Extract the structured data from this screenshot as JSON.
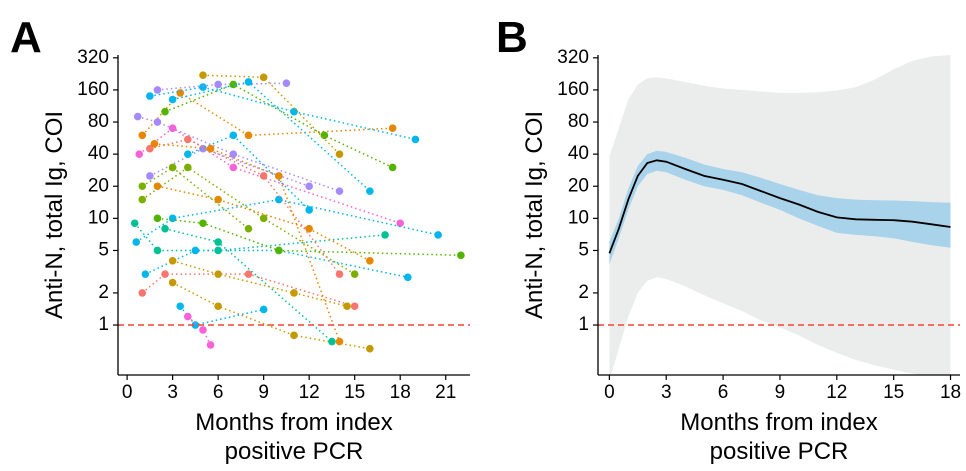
{
  "chart_data": [
    {
      "type": "spaghetti",
      "panel_label": "A",
      "ylabel": "Anti-N, total Ig, COI",
      "xlabel": [
        "Months from index",
        "positive PCR"
      ],
      "log_y": true,
      "xlim": [
        -0.6,
        22.6
      ],
      "ylim": [
        0.34,
        340
      ],
      "xticks": [
        0,
        3,
        6,
        9,
        12,
        15,
        18,
        21
      ],
      "yticks": [
        1,
        2,
        5,
        10,
        20,
        40,
        80,
        160,
        320
      ],
      "hline": 1,
      "hline_color": "#f44336",
      "series": [
        {
          "color": "#E58700",
          "x": [
            1,
            3.5,
            8,
            17.5
          ],
          "values": [
            60,
            150,
            60,
            70
          ]
        },
        {
          "color": "#00B6EB",
          "x": [
            1.5,
            5,
            11,
            19
          ],
          "values": [
            140,
            170,
            100,
            55
          ]
        },
        {
          "color": "#A58AFF",
          "x": [
            2,
            6,
            10.5
          ],
          "values": [
            160,
            180,
            185
          ]
        },
        {
          "color": "#53B400",
          "x": [
            2.5,
            7,
            13,
            17.5
          ],
          "values": [
            100,
            180,
            60,
            30
          ]
        },
        {
          "color": "#00B6EB",
          "x": [
            3,
            8,
            16
          ],
          "values": [
            130,
            190,
            18
          ]
        },
        {
          "color": "#FB61D7",
          "x": [
            0.8,
            3,
            7,
            18
          ],
          "values": [
            40,
            70,
            30,
            9
          ]
        },
        {
          "color": "#C49A00",
          "x": [
            5,
            9,
            14
          ],
          "values": [
            220,
            210,
            40
          ]
        },
        {
          "color": "#7CAE00",
          "x": [
            1,
            4,
            9,
            15
          ],
          "values": [
            15,
            30,
            10,
            3
          ]
        },
        {
          "color": "#00C094",
          "x": [
            0.5,
            2,
            6,
            17
          ],
          "values": [
            9,
            5,
            5,
            7
          ]
        },
        {
          "color": "#00B6EB",
          "x": [
            0.6,
            3,
            10,
            20.5
          ],
          "values": [
            6,
            10,
            15,
            7
          ]
        },
        {
          "color": "#A58AFF",
          "x": [
            1.5,
            5,
            12
          ],
          "values": [
            25,
            45,
            20
          ]
        },
        {
          "color": "#F8766D",
          "x": [
            1,
            2.5,
            8,
            15
          ],
          "values": [
            2,
            3,
            3,
            1.5
          ]
        },
        {
          "color": "#00B6EB",
          "x": [
            1.2,
            4.5,
            10,
            18.5
          ],
          "values": [
            3,
            5,
            5,
            2.8
          ]
        },
        {
          "color": "#53B400",
          "x": [
            2,
            5,
            10,
            22
          ],
          "values": [
            10,
            9,
            5,
            4.5
          ]
        },
        {
          "color": "#C49A00",
          "x": [
            3,
            6,
            11,
            16
          ],
          "values": [
            2.5,
            1.5,
            0.8,
            0.6
          ]
        },
        {
          "color": "#00B6EB",
          "x": [
            3.5,
            4.5,
            9
          ],
          "values": [
            1.5,
            1,
            1.4
          ]
        },
        {
          "color": "#FB61D7",
          "x": [
            4,
            5,
            5.5
          ],
          "values": [
            1.2,
            0.9,
            0.65
          ]
        },
        {
          "color": "#E58700",
          "x": [
            2,
            6,
            12,
            16
          ],
          "values": [
            20,
            15,
            8,
            4
          ]
        },
        {
          "color": "#7CAE00",
          "x": [
            1,
            3,
            8
          ],
          "values": [
            20,
            30,
            8
          ]
        },
        {
          "color": "#00C094",
          "x": [
            2.5,
            6,
            13.5
          ],
          "values": [
            8,
            6,
            0.7
          ]
        },
        {
          "color": "#F8766D",
          "x": [
            1.5,
            4,
            9,
            14
          ],
          "values": [
            45,
            55,
            25,
            3
          ]
        },
        {
          "color": "#00B6EB",
          "x": [
            4,
            7,
            12
          ],
          "values": [
            40,
            60,
            12
          ]
        },
        {
          "color": "#C49A00",
          "x": [
            3,
            6,
            11,
            14.5
          ],
          "values": [
            4,
            3,
            2,
            1.5
          ]
        },
        {
          "color": "#A58AFF",
          "x": [
            0.7,
            2,
            7,
            14
          ],
          "values": [
            90,
            80,
            40,
            18
          ]
        },
        {
          "color": "#E58700",
          "x": [
            1.8,
            5.5,
            10,
            14
          ],
          "values": [
            50,
            45,
            25,
            0.7
          ]
        }
      ]
    },
    {
      "type": "band",
      "panel_label": "B",
      "ylabel": "Anti-N, total Ig, COI",
      "xlabel": [
        "Months from index",
        "positive PCR"
      ],
      "log_y": true,
      "xlim": [
        -0.6,
        18.5
      ],
      "ylim": [
        0.34,
        340
      ],
      "xticks": [
        0,
        3,
        6,
        9,
        12,
        15,
        18
      ],
      "yticks": [
        1,
        2,
        5,
        10,
        20,
        40,
        80,
        160,
        320
      ],
      "hline": 1,
      "hline_color": "#f44336",
      "line_color": "#000000",
      "ci_color": "#a9d3ea",
      "pi_color": "#ebeded",
      "x": [
        0,
        0.5,
        1,
        1.5,
        2,
        2.5,
        3,
        4,
        5,
        6,
        7,
        8,
        9,
        10,
        11,
        12,
        13,
        14,
        15,
        16,
        17,
        18
      ],
      "values": [
        4.7,
        8,
        15,
        25,
        33,
        35,
        34,
        29,
        25,
        23,
        21,
        18,
        15.5,
        13.5,
        11.5,
        10.2,
        9.8,
        9.7,
        9.6,
        9.3,
        8.8,
        8.3
      ],
      "ci_lower": [
        3.7,
        6.5,
        12,
        20,
        26,
        28,
        27,
        23,
        20,
        18.5,
        16.5,
        14,
        12,
        10,
        8.5,
        7.3,
        7,
        6.8,
        6.5,
        6,
        5.6,
        5.3
      ],
      "ci_upper": [
        6,
        10,
        19,
        31,
        40,
        43,
        42,
        37,
        32,
        29,
        27,
        24,
        21,
        18.5,
        16.5,
        15.5,
        15,
        14.8,
        14.7,
        14.5,
        14.2,
        14
      ],
      "pi_lower": [
        0.3,
        0.6,
        1.2,
        2,
        2.6,
        2.8,
        2.7,
        2.3,
        1.9,
        1.6,
        1.35,
        1.1,
        0.95,
        0.8,
        0.65,
        0.55,
        0.47,
        0.42,
        0.38,
        0.35,
        0.33,
        0.32
      ],
      "pi_upper": [
        38,
        70,
        130,
        180,
        205,
        210,
        205,
        190,
        175,
        165,
        160,
        155,
        150,
        150,
        152,
        158,
        170,
        200,
        250,
        300,
        330,
        340
      ]
    }
  ]
}
